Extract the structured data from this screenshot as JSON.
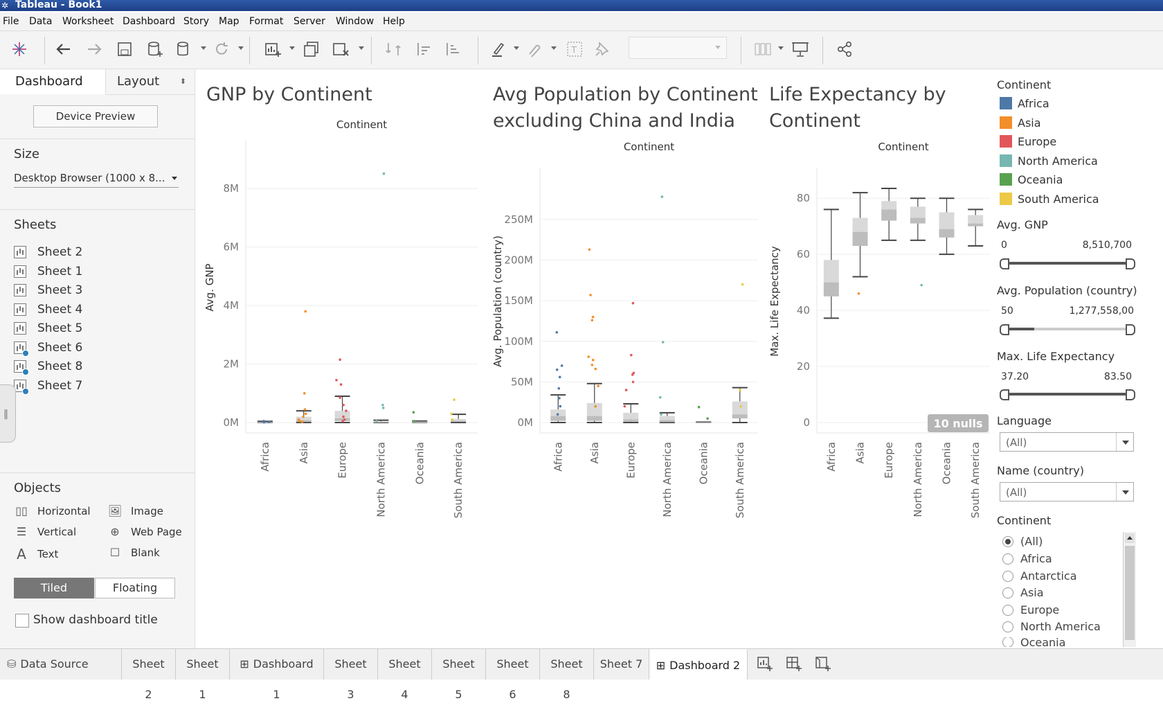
{
  "app": {
    "title": "Tableau - Book1"
  },
  "menu": [
    "File",
    "Data",
    "Worksheet",
    "Dashboard",
    "Story",
    "Map",
    "Format",
    "Server",
    "Window",
    "Help"
  ],
  "left_pane": {
    "tab_dashboard": "Dashboard",
    "tab_layout": "Layout",
    "device_preview": "Device Preview",
    "size_header": "Size",
    "size_value": "Desktop Browser (1000 x 8...",
    "sheets_header": "Sheets",
    "sheets": [
      {
        "label": "Sheet 2",
        "used": false
      },
      {
        "label": "Sheet 1",
        "used": false
      },
      {
        "label": "Sheet 3",
        "used": false
      },
      {
        "label": "Sheet 4",
        "used": false
      },
      {
        "label": "Sheet 5",
        "used": false
      },
      {
        "label": "Sheet 6",
        "used": true
      },
      {
        "label": "Sheet 8",
        "used": true
      },
      {
        "label": "Sheet 7",
        "used": true
      }
    ],
    "objects_header": "Objects",
    "objects": [
      "Horizontal",
      "Image",
      "Vertical",
      "Web Page",
      "Text",
      "Blank"
    ],
    "tiled": "Tiled",
    "floating": "Floating",
    "show_title": "Show dashboard title"
  },
  "charts": {
    "gnp_title": "GNP by Continent",
    "pop_title_line1": "Avg Population by Continent",
    "pop_title_line2": "excluding China and India",
    "life_title_line1": "Life Expectancy by",
    "life_title_line2": "Continent",
    "column_header": "Continent",
    "gnp_ylabel": "Avg. GNP",
    "pop_ylabel": "Avg. Population (country)",
    "life_ylabel": "Max. Life Expectancy",
    "nulls_badge": "10 nulls"
  },
  "chart_data": [
    {
      "type": "scatter",
      "title": "GNP by Continent",
      "xlabel": "Continent",
      "ylabel": "Avg. GNP",
      "categories": [
        "Africa",
        "Asia",
        "Europe",
        "North America",
        "Oceania",
        "South America"
      ],
      "ylim": [
        0,
        9000000
      ],
      "yticks": [
        0,
        2000000,
        4000000,
        6000000,
        8000000
      ],
      "ytick_labels": [
        "0M",
        "2M",
        "4M",
        "6M",
        "8M"
      ],
      "box": [
        {
          "q1": 0,
          "median": 10000,
          "q3": 20000,
          "wmin": 0,
          "wmax": 40000
        },
        {
          "q1": 20000,
          "median": 80000,
          "q3": 200000,
          "wmin": 0,
          "wmax": 400000
        },
        {
          "q1": 50000,
          "median": 150000,
          "q3": 400000,
          "wmin": 0,
          "wmax": 900000
        },
        {
          "q1": 0,
          "median": 20000,
          "q3": 40000,
          "wmin": 0,
          "wmax": 80000
        },
        {
          "q1": 0,
          "median": 10000,
          "q3": 30000,
          "wmin": 0,
          "wmax": 50000
        },
        {
          "q1": 20000,
          "median": 60000,
          "q3": 120000,
          "wmin": 0,
          "wmax": 280000
        }
      ],
      "points": [
        [
          0,
          50000
        ],
        [
          0,
          20000
        ],
        [
          0,
          10000
        ],
        [
          1,
          3800000
        ],
        [
          1,
          1000000
        ],
        [
          1,
          450000
        ],
        [
          1,
          300000
        ],
        [
          1,
          200000
        ],
        [
          1,
          100000
        ],
        [
          1,
          50000
        ],
        [
          1,
          20000
        ],
        [
          2,
          2150000
        ],
        [
          2,
          1450000
        ],
        [
          2,
          1300000
        ],
        [
          2,
          850000
        ],
        [
          2,
          600000
        ],
        [
          2,
          400000
        ],
        [
          2,
          200000
        ],
        [
          2,
          100000
        ],
        [
          2,
          50000
        ],
        [
          3,
          8510700
        ],
        [
          3,
          600000
        ],
        [
          3,
          500000
        ],
        [
          3,
          50000
        ],
        [
          4,
          350000
        ],
        [
          4,
          50000
        ],
        [
          5,
          780000
        ],
        [
          5,
          300000
        ],
        [
          5,
          100000
        ]
      ]
    },
    {
      "type": "scatter",
      "title": "Avg Population by Continent excluding China and India",
      "xlabel": "Continent",
      "ylabel": "Avg. Population (country)",
      "categories": [
        "Africa",
        "Asia",
        "Europe",
        "North America",
        "Oceania",
        "South America"
      ],
      "ylim": [
        0,
        290000000
      ],
      "yticks": [
        0,
        50000000,
        100000000,
        150000000,
        200000000,
        250000000
      ],
      "ytick_labels": [
        "0M",
        "50M",
        "100M",
        "150M",
        "200M",
        "250M"
      ],
      "box": [
        {
          "q1": 2000000,
          "median": 8000000,
          "q3": 16000000,
          "wmin": 0,
          "wmax": 34000000
        },
        {
          "q1": 2000000,
          "median": 8000000,
          "q3": 24000000,
          "wmin": 0,
          "wmax": 48000000
        },
        {
          "q1": 1000000,
          "median": 4000000,
          "q3": 12000000,
          "wmin": 0,
          "wmax": 23000000
        },
        {
          "q1": 500000,
          "median": 3000000,
          "q3": 8000000,
          "wmin": 0,
          "wmax": 12000000
        },
        {
          "q1": 0,
          "median": 100000,
          "q3": 300000,
          "wmin": 0,
          "wmax": 500000
        },
        {
          "q1": 5000000,
          "median": 10000000,
          "q3": 26000000,
          "wmin": 0,
          "wmax": 43000000
        }
      ],
      "points": [
        [
          0,
          111000000
        ],
        [
          0,
          70000000
        ],
        [
          0,
          65000000
        ],
        [
          0,
          56000000
        ],
        [
          0,
          42000000
        ],
        [
          0,
          30000000
        ],
        [
          0,
          20000000
        ],
        [
          0,
          10000000
        ],
        [
          1,
          213000000
        ],
        [
          1,
          157000000
        ],
        [
          1,
          130000000
        ],
        [
          1,
          126000000
        ],
        [
          1,
          81000000
        ],
        [
          1,
          77000000
        ],
        [
          1,
          71000000
        ],
        [
          1,
          66000000
        ],
        [
          1,
          45000000
        ],
        [
          1,
          20000000
        ],
        [
          2,
          147000000
        ],
        [
          2,
          83000000
        ],
        [
          2,
          61000000
        ],
        [
          2,
          59000000
        ],
        [
          2,
          50000000
        ],
        [
          2,
          40000000
        ],
        [
          2,
          20000000
        ],
        [
          3,
          278000000
        ],
        [
          3,
          99000000
        ],
        [
          3,
          31000000
        ],
        [
          3,
          10000000
        ],
        [
          4,
          19000000
        ],
        [
          4,
          5000000
        ],
        [
          5,
          170000000
        ],
        [
          5,
          40000000
        ],
        [
          5,
          20000000
        ]
      ]
    },
    {
      "type": "scatter",
      "title": "Life Expectancy by Continent",
      "xlabel": "Continent",
      "ylabel": "Max. Life Expectancy",
      "categories": [
        "Africa",
        "Asia",
        "Europe",
        "North America",
        "Oceania",
        "South America"
      ],
      "ylim": [
        0,
        84
      ],
      "yticks": [
        0,
        20,
        40,
        60,
        80
      ],
      "ytick_labels": [
        "0",
        "20",
        "40",
        "60",
        "80"
      ],
      "box": [
        {
          "q1": 45,
          "median": 50,
          "q3": 58,
          "wmin": 37.2,
          "wmax": 76
        },
        {
          "q1": 63,
          "median": 68,
          "q3": 73,
          "wmin": 52,
          "wmax": 82
        },
        {
          "q1": 72,
          "median": 76,
          "q3": 79,
          "wmin": 65,
          "wmax": 83.5
        },
        {
          "q1": 71,
          "median": 73,
          "q3": 77,
          "wmin": 65,
          "wmax": 80
        },
        {
          "q1": 66,
          "median": 69,
          "q3": 75,
          "wmin": 60,
          "wmax": 80
        },
        {
          "q1": 70,
          "median": 71,
          "q3": 74,
          "wmin": 63,
          "wmax": 76
        }
      ],
      "points": [
        [
          1,
          46
        ],
        [
          3,
          49
        ]
      ],
      "annotation": "10 nulls"
    }
  ],
  "legend": {
    "header": "Continent",
    "items": [
      {
        "label": "Africa",
        "color": "#4e79a7"
      },
      {
        "label": "Asia",
        "color": "#f28e2b"
      },
      {
        "label": "Europe",
        "color": "#e15759"
      },
      {
        "label": "North America",
        "color": "#76b7b2"
      },
      {
        "label": "Oceania",
        "color": "#59a14f"
      },
      {
        "label": "South America",
        "color": "#edc948"
      }
    ]
  },
  "filters": {
    "gnp": {
      "label": "Avg. GNP",
      "min": "0",
      "max": "8,510,700"
    },
    "pop": {
      "label": "Avg. Population (country)",
      "min": "50",
      "max": "1,277,558,00"
    },
    "life": {
      "label": "Max. Life Expectancy",
      "min": "37.20",
      "max": "83.50"
    },
    "language": {
      "label": "Language",
      "value": "(All)"
    },
    "name": {
      "label": "Name (country)",
      "value": "(All)"
    },
    "continent": {
      "label": "Continent",
      "options": [
        "(All)",
        "Africa",
        "Antarctica",
        "Asia",
        "Europe",
        "North America",
        "Oceania"
      ],
      "selected": 0
    }
  },
  "bottom_tabs": [
    {
      "label": "Data Source",
      "icon": "cylinder"
    },
    {
      "label": "Sheet 2"
    },
    {
      "label": "Sheet 1"
    },
    {
      "label": "Dashboard 1",
      "icon": "grid"
    },
    {
      "label": "Sheet 3"
    },
    {
      "label": "Sheet 4"
    },
    {
      "label": "Sheet 5"
    },
    {
      "label": "Sheet 6"
    },
    {
      "label": "Sheet 8"
    },
    {
      "label": "Sheet 7"
    },
    {
      "label": "Dashboard 2",
      "icon": "grid",
      "active": true
    }
  ]
}
